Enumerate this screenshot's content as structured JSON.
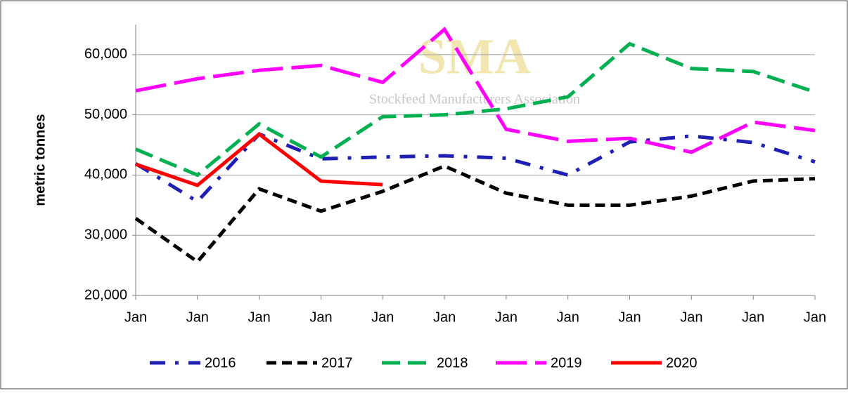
{
  "chart_data": {
    "type": "line",
    "annotations": [
      "SMA",
      "Stockfeed Manufacturers Association"
    ],
    "y_label": "metric tonnes",
    "categories": [
      "Jan",
      "Jan",
      "Jan",
      "Jan",
      "Jan",
      "Jan",
      "Jan",
      "Jan",
      "Jan",
      "Jan",
      "Jan",
      "Jan"
    ],
    "ylim": [
      20000,
      65000
    ],
    "yticks": [
      {
        "value": 20000,
        "label": "20,000"
      },
      {
        "value": 30000,
        "label": "30,000"
      },
      {
        "value": 40000,
        "label": "40,000"
      },
      {
        "value": 50000,
        "label": "50,000"
      },
      {
        "value": 60000,
        "label": "60,000"
      }
    ],
    "grid": true,
    "legend": "bottom",
    "series": [
      {
        "name": "2016",
        "color": "#1f1fb4",
        "dash": "dash-dot",
        "values": [
          41900,
          35600,
          46800,
          42700,
          43000,
          43200,
          42800,
          40000,
          45500,
          46500,
          45400,
          42200
        ]
      },
      {
        "name": "2017",
        "color": "#000000",
        "dash": "short-dash",
        "values": [
          32800,
          25600,
          37700,
          34000,
          37300,
          41500,
          37000,
          35000,
          35000,
          36500,
          39000,
          39400
        ]
      },
      {
        "name": "2018",
        "color": "#00b050",
        "dash": "dash",
        "values": [
          44300,
          40000,
          48500,
          43000,
          49700,
          50000,
          51000,
          53000,
          61800,
          57700,
          57200,
          53800
        ]
      },
      {
        "name": "2019",
        "color": "#ff00ff",
        "dash": "long-dash",
        "values": [
          54000,
          56000,
          57400,
          58200,
          55400,
          64200,
          47600,
          45600,
          46100,
          43800,
          48800,
          47400
        ]
      },
      {
        "name": "2020",
        "color": "#ff0000",
        "dash": "solid",
        "values": [
          41800,
          38300,
          46800,
          39000,
          38400,
          null,
          null,
          null,
          null,
          null,
          null,
          null
        ]
      }
    ]
  }
}
